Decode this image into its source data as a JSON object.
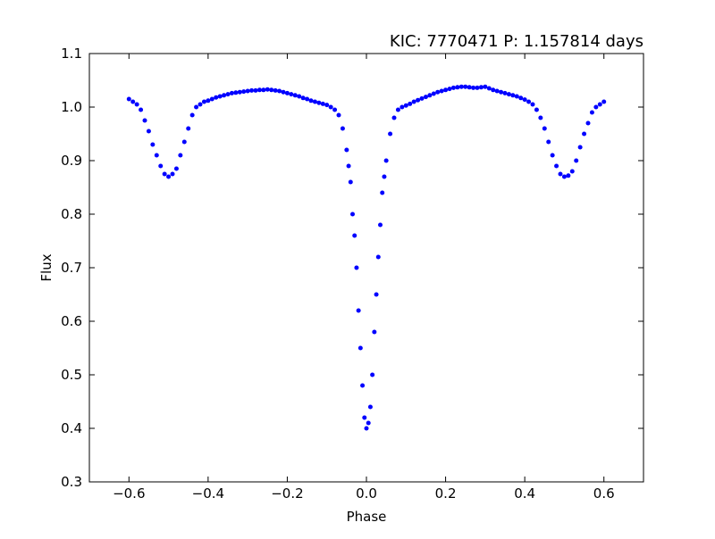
{
  "chart_data": {
    "type": "scatter",
    "title": "KIC: 7770471  P: 1.157814 days",
    "x_label": "Phase",
    "y_label": "Flux",
    "color": "#0000ff",
    "xlim": [
      -0.7,
      0.7
    ],
    "ylim": [
      0.3,
      1.1
    ],
    "xticks": [
      {
        "value": -0.6,
        "label": "−0.6"
      },
      {
        "value": -0.4,
        "label": "−0.4"
      },
      {
        "value": -0.2,
        "label": "−0.2"
      },
      {
        "value": 0,
        "label": "0.0"
      },
      0.2,
      0.4,
      0.6
    ],
    "yticks": [
      0.3,
      0.4,
      0.5,
      0.6,
      0.7,
      0.8,
      0.9,
      {
        "value": 1,
        "label": "1.0"
      },
      1.1
    ],
    "x": [
      -0.6,
      -0.59,
      -0.58,
      -0.57,
      -0.56,
      -0.55,
      -0.54,
      -0.53,
      -0.52,
      -0.51,
      -0.5,
      -0.49,
      -0.48,
      -0.47,
      -0.46,
      -0.45,
      -0.44,
      -0.43,
      -0.42,
      -0.41,
      -0.4,
      -0.39,
      -0.38,
      -0.37,
      -0.36,
      -0.35,
      -0.34,
      -0.33,
      -0.32,
      -0.31,
      -0.3,
      -0.29,
      -0.28,
      -0.27,
      -0.26,
      -0.25,
      -0.24,
      -0.23,
      -0.22,
      -0.21,
      -0.2,
      -0.19,
      -0.18,
      -0.17,
      -0.16,
      -0.15,
      -0.14,
      -0.13,
      -0.12,
      -0.11,
      -0.1,
      -0.09,
      -0.08,
      -0.07,
      -0.06,
      -0.05,
      -0.045,
      -0.04,
      -0.035,
      -0.03,
      -0.025,
      -0.02,
      -0.015,
      -0.01,
      -0.005,
      0,
      0.005,
      0.01,
      0.015,
      0.02,
      0.025,
      0.03,
      0.035,
      0.04,
      0.045,
      0.05,
      0.06,
      0.07,
      0.08,
      0.09,
      0.1,
      0.11,
      0.12,
      0.13,
      0.14,
      0.15,
      0.16,
      0.17,
      0.18,
      0.19,
      0.2,
      0.21,
      0.22,
      0.23,
      0.24,
      0.25,
      0.26,
      0.27,
      0.28,
      0.29,
      0.3,
      0.31,
      0.32,
      0.33,
      0.34,
      0.35,
      0.36,
      0.37,
      0.38,
      0.39,
      0.4,
      0.41,
      0.42,
      0.43,
      0.44,
      0.45,
      0.46,
      0.47,
      0.48,
      0.49,
      0.5,
      0.51,
      0.52,
      0.53,
      0.54,
      0.55,
      0.56,
      0.57,
      0.58,
      0.59,
      0.6
    ],
    "values": [
      1.015,
      1.01,
      1.005,
      0.995,
      0.975,
      0.955,
      0.93,
      0.91,
      0.89,
      0.875,
      0.87,
      0.875,
      0.885,
      0.91,
      0.935,
      0.96,
      0.985,
      1.0,
      1.005,
      1.01,
      1.012,
      1.015,
      1.018,
      1.02,
      1.022,
      1.024,
      1.026,
      1.027,
      1.028,
      1.029,
      1.03,
      1.031,
      1.031,
      1.032,
      1.032,
      1.033,
      1.032,
      1.031,
      1.03,
      1.028,
      1.026,
      1.024,
      1.022,
      1.02,
      1.017,
      1.015,
      1.012,
      1.01,
      1.008,
      1.006,
      1.004,
      1.0,
      0.995,
      0.985,
      0.96,
      0.92,
      0.89,
      0.86,
      0.8,
      0.76,
      0.7,
      0.62,
      0.55,
      0.48,
      0.42,
      0.4,
      0.41,
      0.44,
      0.5,
      0.58,
      0.65,
      0.72,
      0.78,
      0.84,
      0.87,
      0.9,
      0.95,
      0.98,
      0.995,
      1.0,
      1.003,
      1.006,
      1.01,
      1.013,
      1.016,
      1.019,
      1.022,
      1.025,
      1.028,
      1.03,
      1.032,
      1.034,
      1.036,
      1.037,
      1.038,
      1.038,
      1.037,
      1.036,
      1.036,
      1.037,
      1.038,
      1.035,
      1.032,
      1.03,
      1.028,
      1.026,
      1.024,
      1.022,
      1.02,
      1.017,
      1.014,
      1.01,
      1.005,
      0.995,
      0.98,
      0.96,
      0.935,
      0.91,
      0.89,
      0.875,
      0.87,
      0.872,
      0.88,
      0.9,
      0.925,
      0.95,
      0.97,
      0.99,
      1.0,
      1.005,
      1.01
    ]
  }
}
